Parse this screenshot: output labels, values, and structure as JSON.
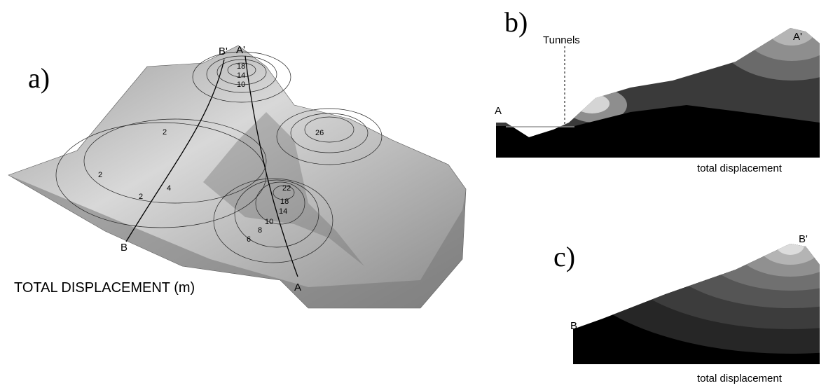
{
  "panel_a": {
    "label": "a)",
    "caption": "TOTAL DISPLACEMENT (m)",
    "top_b": "B'",
    "top_a": "A'",
    "bottom_b": "B",
    "bottom_a": "A",
    "contour_labels": [
      18,
      14,
      10,
      2,
      2,
      4,
      2,
      26,
      22,
      18,
      14,
      10,
      8,
      6
    ]
  },
  "panel_b": {
    "label": "b)",
    "annotation": "Tunnels",
    "start": "A",
    "end": "A'",
    "caption": "total displacement"
  },
  "panel_c": {
    "label": "c)",
    "start": "B",
    "end": "B'",
    "caption": "total displacement"
  }
}
